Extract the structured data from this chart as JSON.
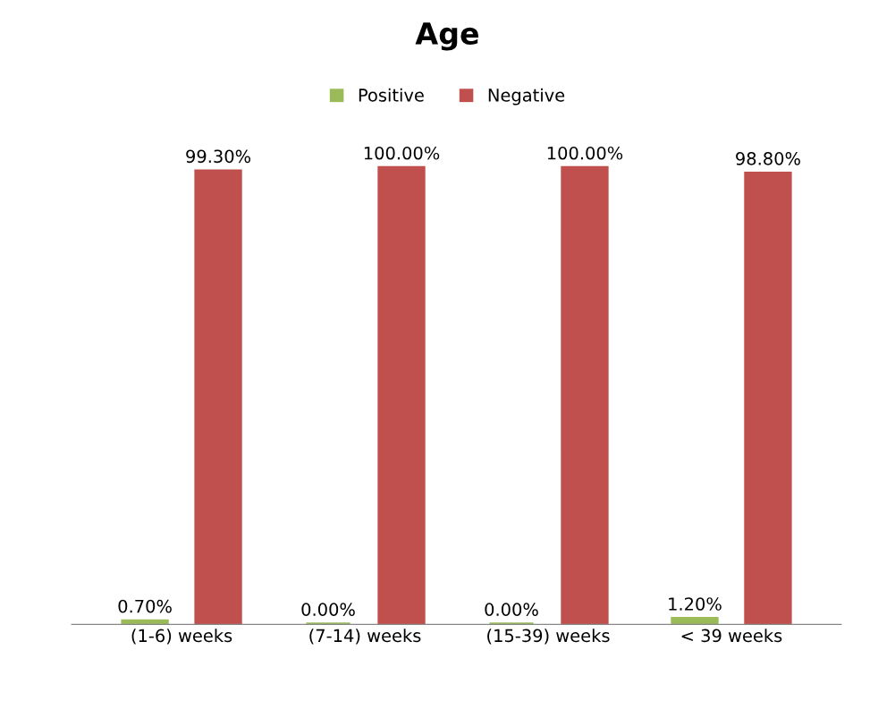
{
  "chart_data": {
    "type": "bar",
    "title": "Age",
    "categories": [
      "(1-6) weeks",
      "(7-14) weeks",
      "(15-39) weeks",
      "< 39 weeks"
    ],
    "series": [
      {
        "name": "Positive",
        "color": "#9bbb59",
        "values": [
          0.7,
          0.0,
          0.0,
          1.2
        ],
        "value_labels": [
          "0.70%",
          "0.00%",
          "0.00%",
          "1.20%"
        ]
      },
      {
        "name": "Negative",
        "color": "#c0504d",
        "values": [
          99.3,
          100.0,
          100.0,
          98.8
        ],
        "value_labels": [
          "99.30%",
          "100.00%",
          "100.00%",
          "98.80%"
        ]
      }
    ],
    "legend": "top",
    "grid": false
  }
}
